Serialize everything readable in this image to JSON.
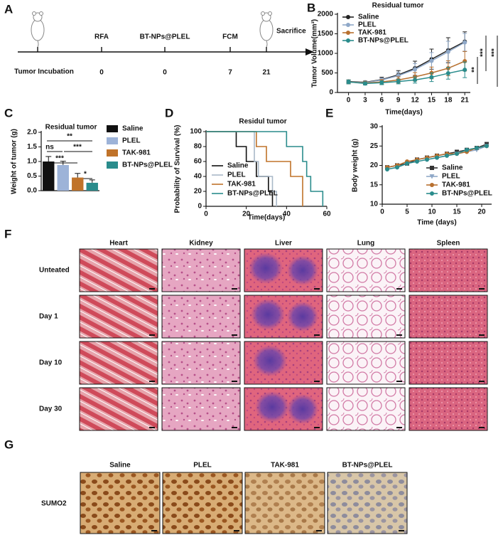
{
  "panel_labels": [
    "A",
    "B",
    "C",
    "D",
    "E",
    "F",
    "G"
  ],
  "timeline": {
    "start_label": "Tumor Incubation",
    "events": [
      {
        "label": "RFA",
        "day": 0
      },
      {
        "label": "BT-NPs@PLEL",
        "day": 0
      },
      {
        "label": "FCM",
        "day": 7
      },
      {
        "label": "Sacrifice",
        "day": 21
      }
    ]
  },
  "chart_data": [
    {
      "type": "line",
      "title": "Residual tumor",
      "x_label": "Time(days)",
      "y_label": "Tumor Volume(mm³)",
      "x": [
        0,
        3,
        6,
        9,
        12,
        15,
        18,
        21
      ],
      "xlim": [
        -2,
        22
      ],
      "xticks": [
        0,
        3,
        6,
        9,
        12,
        15,
        18,
        21
      ],
      "ylim": [
        0,
        2000
      ],
      "yticks": [
        0,
        500,
        1000,
        1500,
        2000
      ],
      "series": [
        {
          "name": "Saline",
          "color": "#222222",
          "values": [
            280,
            260,
            330,
            450,
            620,
            850,
            1080,
            1300
          ],
          "errors": [
            40,
            30,
            60,
            110,
            180,
            260,
            320,
            250
          ]
        },
        {
          "name": "PLEL",
          "color": "#8fa8c8",
          "values": [
            270,
            250,
            320,
            430,
            590,
            810,
            1040,
            1280
          ],
          "errors": [
            40,
            30,
            50,
            90,
            150,
            210,
            270,
            230
          ]
        },
        {
          "name": "TAK-981",
          "color": "#b8702f",
          "values": [
            270,
            240,
            270,
            320,
            400,
            500,
            620,
            800
          ],
          "errors": [
            50,
            40,
            60,
            80,
            110,
            150,
            190,
            250
          ]
        },
        {
          "name": "BT-NPs@PLEL",
          "color": "#2a8c8c",
          "values": [
            270,
            230,
            250,
            280,
            320,
            390,
            490,
            580
          ],
          "errors": [
            50,
            40,
            50,
            60,
            80,
            110,
            150,
            200
          ]
        }
      ],
      "annotations": [
        "***",
        "**",
        "***"
      ]
    },
    {
      "type": "bar",
      "title": "Residual tumor",
      "y_label": "Weight of tumor (g)",
      "categories": [
        "Saline",
        "PLEL",
        "TAK-981",
        "BT-NPs@PLEL"
      ],
      "values": [
        1.0,
        0.88,
        0.45,
        0.27
      ],
      "errors": [
        0.17,
        0.13,
        0.14,
        0.1
      ],
      "colors": [
        "#111111",
        "#9db3d8",
        "#c0732a",
        "#2a8c8c"
      ],
      "ylim": [
        0,
        2
      ],
      "yticks": [
        {
          "value": 0,
          "label": "0.0"
        },
        {
          "value": 0.5,
          "label": "0.5"
        },
        {
          "value": 1,
          "label": "1.0"
        },
        {
          "value": 1.5,
          "label": "1.5"
        },
        {
          "value": 2,
          "label": "2.0"
        }
      ],
      "annotations": [
        "**",
        "ns",
        "***",
        "***",
        "*"
      ]
    },
    {
      "type": "step",
      "title": "Residul tumor",
      "x_label": "Time(days)",
      "y_label": "Probability of Survival (%)",
      "xlim": [
        0,
        60
      ],
      "xticks": [
        0,
        20,
        40,
        60
      ],
      "ylim": [
        0,
        100
      ],
      "yticks": [
        0,
        20,
        40,
        60,
        80,
        100
      ],
      "series": [
        {
          "name": "Saline",
          "color": "#111111",
          "x": [
            0,
            15,
            15,
            20,
            20,
            25,
            25,
            31,
            31,
            33,
            33
          ],
          "values": [
            100,
            100,
            80,
            80,
            60,
            60,
            40,
            40,
            20,
            20,
            0
          ]
        },
        {
          "name": "PLEL",
          "color": "#a9b8c8",
          "x": [
            0,
            24,
            24,
            26,
            26,
            33,
            33,
            35,
            35
          ],
          "values": [
            100,
            100,
            60,
            60,
            40,
            40,
            20,
            20,
            0
          ]
        },
        {
          "name": "TAK-981",
          "color": "#c0732a",
          "x": [
            0,
            25,
            25,
            30,
            30,
            42,
            42,
            48,
            48
          ],
          "values": [
            100,
            100,
            80,
            80,
            60,
            60,
            40,
            40,
            0
          ]
        },
        {
          "name": "BT-NPs@PLEL",
          "color": "#2a8c8c",
          "x": [
            0,
            40,
            40,
            48,
            48,
            50,
            50,
            52,
            52,
            58,
            58
          ],
          "values": [
            100,
            100,
            80,
            80,
            60,
            60,
            40,
            40,
            20,
            20,
            0
          ]
        }
      ]
    },
    {
      "type": "line",
      "x_label": "Time (days)",
      "y_label": "Body weight (g)",
      "x": [
        1,
        3,
        5,
        7,
        9,
        11,
        13,
        15,
        17,
        19,
        21
      ],
      "xlim": [
        0,
        22
      ],
      "xticks": [
        0,
        5,
        10,
        15,
        20
      ],
      "ylim": [
        10,
        30
      ],
      "yticks": [
        10,
        15,
        20,
        25,
        30
      ],
      "series": [
        {
          "name": "Saline",
          "color": "#333333",
          "marker": "square",
          "values": [
            19.5,
            20,
            20.5,
            21.5,
            22,
            22.5,
            23,
            23.5,
            24,
            24.5,
            25.5
          ]
        },
        {
          "name": "PLEL",
          "color": "#8fa8c8",
          "marker": "triangle-down",
          "values": [
            19,
            19.5,
            20.5,
            21,
            21.5,
            22,
            22.5,
            23,
            23.5,
            24,
            25
          ]
        },
        {
          "name": "TAK-981",
          "color": "#b8702f",
          "marker": "circle",
          "values": [
            19.5,
            20,
            21,
            21.5,
            22,
            22.5,
            23,
            23,
            23.5,
            24.5,
            25
          ]
        },
        {
          "name": "BT-NPs@PLEL",
          "color": "#2a8c8c",
          "marker": "circle",
          "values": [
            19,
            19.5,
            20.5,
            21,
            21.5,
            22,
            22.5,
            23,
            24,
            24.5,
            25
          ]
        }
      ]
    }
  ],
  "histology": {
    "columns": [
      "Heart",
      "Kidney",
      "Liver",
      "Lung",
      "Spleen"
    ],
    "rows": [
      "Unteated",
      "Day 1",
      "Day 10",
      "Day 30"
    ]
  },
  "ihc": {
    "columns": [
      "Saline",
      "PLEL",
      "TAK-981",
      "BT-NPs@PLEL"
    ],
    "rows": [
      "SUMO2"
    ]
  }
}
